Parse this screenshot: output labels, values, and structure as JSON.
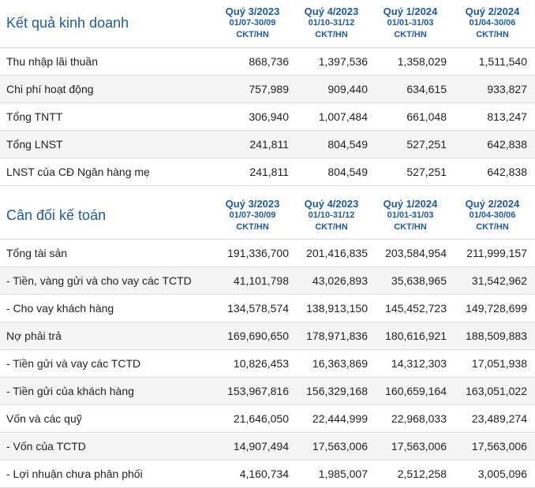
{
  "business": {
    "title": "Kết quả kinh doanh",
    "quarters": [
      {
        "q": "Quý 3/2023",
        "range": "01/07-30/09",
        "unit": "CKT/HN"
      },
      {
        "q": "Quý 4/2023",
        "range": "01/10-31/12",
        "unit": "CKT/HN"
      },
      {
        "q": "Quý 1/2024",
        "range": "01/01-31/03",
        "unit": "CKT/HN"
      },
      {
        "q": "Quý 2/2024",
        "range": "01/04-30/06",
        "unit": "CKT/HN"
      }
    ],
    "rows": [
      {
        "label": "Thu nhập lãi thuần",
        "values": [
          "868,736",
          "1,397,536",
          "1,358,029",
          "1,511,540"
        ]
      },
      {
        "label": "Chi phí hoạt động",
        "values": [
          "757,989",
          "909,440",
          "634,615",
          "933,827"
        ]
      },
      {
        "label": "Tổng TNTT",
        "values": [
          "306,940",
          "1,007,484",
          "661,048",
          "813,247"
        ]
      },
      {
        "label": "Tổng LNST",
        "values": [
          "241,811",
          "804,549",
          "527,251",
          "642,838"
        ]
      },
      {
        "label": "LNST của CĐ Ngân hàng mẹ",
        "values": [
          "241,811",
          "804,549",
          "527,251",
          "642,838"
        ]
      }
    ]
  },
  "balance": {
    "title": "Cân đối kế toán",
    "quarters": [
      {
        "q": "Quý 3/2023",
        "range": "01/07-30/09",
        "unit": "CKT/HN"
      },
      {
        "q": "Quý 4/2023",
        "range": "01/10-31/12",
        "unit": "CKT/HN"
      },
      {
        "q": "Quý 1/2024",
        "range": "01/01-31/03",
        "unit": "CKT/HN"
      },
      {
        "q": "Quý 2/2024",
        "range": "01/04-30/06",
        "unit": "CKT/HN"
      }
    ],
    "rows": [
      {
        "label": "Tổng tài sản",
        "values": [
          "191,336,700",
          "201,416,835",
          "203,584,954",
          "211,999,157"
        ]
      },
      {
        "label": "- Tiền, vàng gửi và cho vay các TCTD",
        "values": [
          "41,101,798",
          "43,026,893",
          "35,638,965",
          "31,542,962"
        ]
      },
      {
        "label": "- Cho vay khách hàng",
        "values": [
          "134,578,574",
          "138,913,150",
          "145,452,723",
          "149,728,699"
        ]
      },
      {
        "label": "Nợ phải trả",
        "values": [
          "169,690,650",
          "178,971,836",
          "180,616,921",
          "188,509,883"
        ]
      },
      {
        "label": "- Tiền gửi và vay các TCTD",
        "values": [
          "10,826,453",
          "16,363,869",
          "14,312,303",
          "17,051,938"
        ]
      },
      {
        "label": "- Tiền gửi của khách hàng",
        "values": [
          "153,967,816",
          "156,329,168",
          "160,659,164",
          "163,051,022"
        ]
      },
      {
        "label": "Vốn và các quỹ",
        "values": [
          "21,646,050",
          "22,444,999",
          "22,968,033",
          "23,489,274"
        ]
      },
      {
        "label": "- Vốn của TCTD",
        "values": [
          "14,907,494",
          "17,563,006",
          "17,563,006",
          "17,563,006"
        ]
      },
      {
        "label": "- Lợi nhuận chưa phân phối",
        "values": [
          "4,160,734",
          "1,985,007",
          "2,512,258",
          "3,005,096"
        ]
      }
    ]
  }
}
